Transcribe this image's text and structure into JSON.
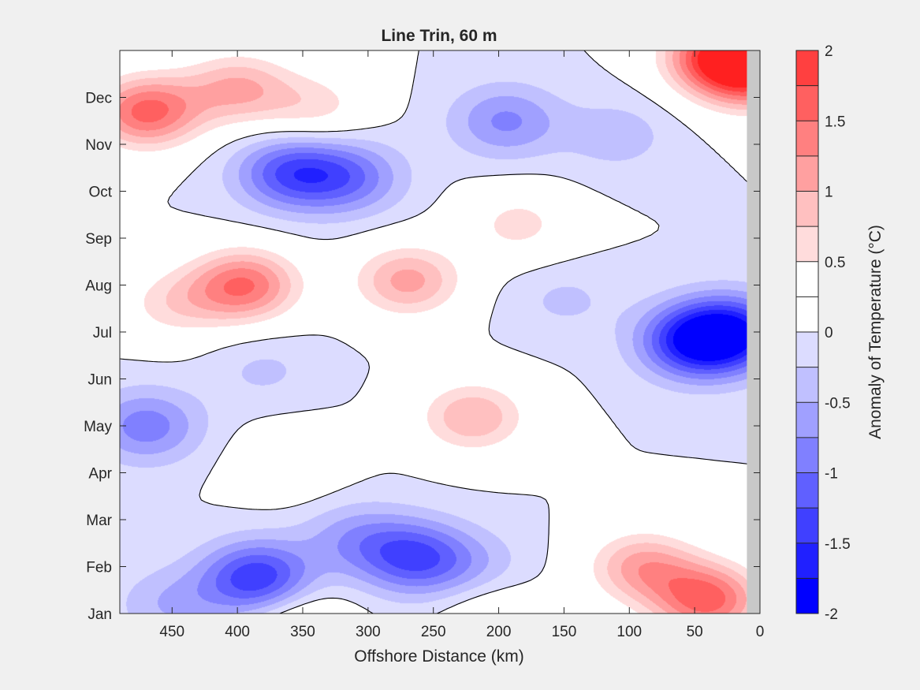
{
  "chart_data": {
    "type": "heatmap",
    "subtype": "filled-contour",
    "title": "Line Trin, 60 m",
    "xlabel": "Offshore Distance (km)",
    "ylabel": "",
    "x_reversed": true,
    "xlim": [
      490,
      0
    ],
    "ylim": [
      "Jan",
      "end of Dec"
    ],
    "xticks": [
      450,
      400,
      350,
      300,
      250,
      200,
      150,
      100,
      50,
      0
    ],
    "yticks": [
      "Jan",
      "Feb",
      "Mar",
      "Apr",
      "May",
      "Jun",
      "Jul",
      "Aug",
      "Sep",
      "Oct",
      "Nov",
      "Dec"
    ],
    "no_data_region_km": [
      0,
      10
    ],
    "no_data_color": "#c8c8c8",
    "zero_contour_color": "#000000",
    "colorbar": {
      "label": "Anomaly of Temperature (°C)",
      "clim": [
        -2,
        2
      ],
      "ticks": [
        2,
        1.5,
        1,
        0.5,
        0,
        -0.5,
        -1,
        -1.5,
        -2
      ],
      "levels": [
        -2,
        -1.75,
        -1.5,
        -1.25,
        -1,
        -0.75,
        -0.5,
        -0.25,
        0,
        0.25,
        0.5,
        0.75,
        1,
        1.25,
        1.5,
        1.75,
        2
      ],
      "colors": [
        "#0000ff",
        "#2020ff",
        "#4040ff",
        "#6060ff",
        "#8080ff",
        "#a0a0ff",
        "#c0c0ff",
        "#dcdcff",
        "#ffffff",
        "#ffffff",
        "#ffdcdc",
        "#ffc0c0",
        "#ffa0a0",
        "#ff8080",
        "#ff6060",
        "#ff4040",
        "#ff2020"
      ]
    },
    "anomaly_features": [
      {
        "x_km": 470,
        "month": 10.7,
        "value": 1.6
      },
      {
        "x_km": 400,
        "month": 11.2,
        "value": 1.0
      },
      {
        "x_km": 340,
        "month": 10.8,
        "value": 0.6
      },
      {
        "x_km": 30,
        "month": 11.9,
        "value": 1.9
      },
      {
        "x_km": 5,
        "month": 11.5,
        "value": 1.5
      },
      {
        "x_km": 360,
        "month": 9.4,
        "value": -1.2
      },
      {
        "x_km": 315,
        "month": 9.3,
        "value": -0.9
      },
      {
        "x_km": 195,
        "month": 10.5,
        "value": -0.8
      },
      {
        "x_km": 110,
        "month": 10.2,
        "value": -0.4
      },
      {
        "x_km": 395,
        "month": 7.0,
        "value": 1.5
      },
      {
        "x_km": 270,
        "month": 7.1,
        "value": 1.1
      },
      {
        "x_km": 450,
        "month": 6.6,
        "value": 0.6
      },
      {
        "x_km": 185,
        "month": 8.3,
        "value": 0.6
      },
      {
        "x_km": 50,
        "month": 5.8,
        "value": -1.6
      },
      {
        "x_km": 20,
        "month": 6.0,
        "value": -1.4
      },
      {
        "x_km": 150,
        "month": 6.7,
        "value": -0.3
      },
      {
        "x_km": 220,
        "month": 4.2,
        "value": 1.0
      },
      {
        "x_km": 470,
        "month": 4.0,
        "value": -0.9
      },
      {
        "x_km": 380,
        "month": 5.2,
        "value": -0.3
      },
      {
        "x_km": 360,
        "month": 3.2,
        "value": 0.4
      },
      {
        "x_km": 385,
        "month": 0.75,
        "value": -1.5
      },
      {
        "x_km": 265,
        "month": 1.2,
        "value": -1.2
      },
      {
        "x_km": 310,
        "month": 1.6,
        "value": -0.6
      },
      {
        "x_km": 220,
        "month": 1.0,
        "value": -0.4
      },
      {
        "x_km": 40,
        "month": 0.3,
        "value": 1.6
      },
      {
        "x_km": 90,
        "month": 1.0,
        "value": 1.1
      },
      {
        "x_km": 355,
        "month": -0.2,
        "value": 0.6
      },
      {
        "x_km": 205,
        "month": 0.0,
        "value": 0.4
      },
      {
        "x_km": 450,
        "month": 0.2,
        "value": -0.5
      },
      {
        "x_km": 150,
        "month": 2.7,
        "value": 0.0
      }
    ]
  }
}
